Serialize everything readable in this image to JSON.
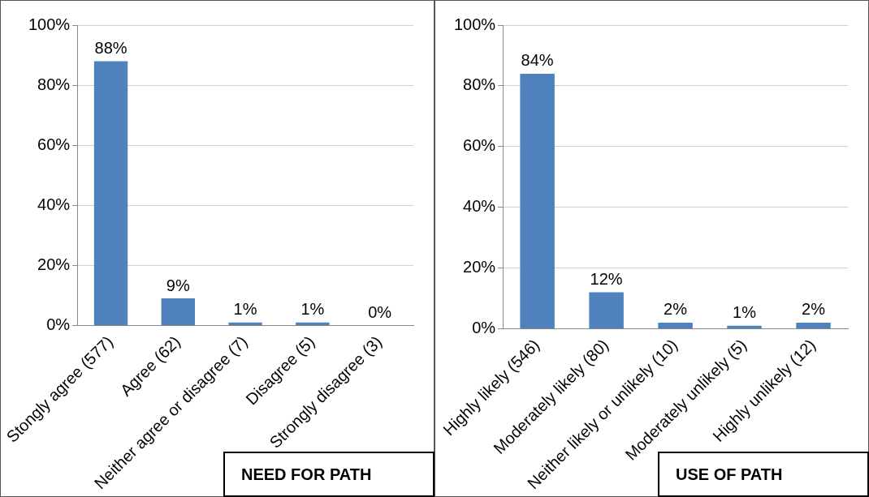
{
  "chart_data": [
    {
      "type": "bar",
      "title": "NEED FOR PATH",
      "categories": [
        "Stongly agree (577)",
        "Agree (62)",
        "Neither agree or disagree (7)",
        "Disagree (5)",
        "Strongly disagree (3)"
      ],
      "values": [
        88,
        9,
        1,
        1,
        0
      ],
      "value_labels": [
        "88%",
        "9%",
        "1%",
        "1%",
        "0%"
      ],
      "color": "#4f81bd",
      "ylim": [
        0,
        100
      ],
      "yticks": [
        {
          "value": 0,
          "label": "0%"
        },
        {
          "value": 20,
          "label": "20%"
        },
        {
          "value": 40,
          "label": "40%"
        },
        {
          "value": 60,
          "label": "60%"
        },
        {
          "value": 80,
          "label": "80%"
        },
        {
          "value": 100,
          "label": "100%"
        }
      ],
      "grid": "y",
      "legend": false
    },
    {
      "type": "bar",
      "title": "USE OF PATH",
      "categories": [
        "Highly likely (546)",
        "Moderately likely (80)",
        "Neither likely or unlikely (10)",
        "Moderately unlikely (5)",
        "Highly unlikely (12)"
      ],
      "values": [
        84,
        12,
        2,
        1,
        2
      ],
      "value_labels": [
        "84%",
        "12%",
        "2%",
        "1%",
        "2%"
      ],
      "color": "#4f81bd",
      "ylim": [
        0,
        100
      ],
      "yticks": [
        {
          "value": 0,
          "label": "0%"
        },
        {
          "value": 20,
          "label": "20%"
        },
        {
          "value": 40,
          "label": "40%"
        },
        {
          "value": 60,
          "label": "60%"
        },
        {
          "value": 80,
          "label": "80%"
        },
        {
          "value": 100,
          "label": "100%"
        }
      ],
      "grid": "y",
      "legend": false
    }
  ]
}
